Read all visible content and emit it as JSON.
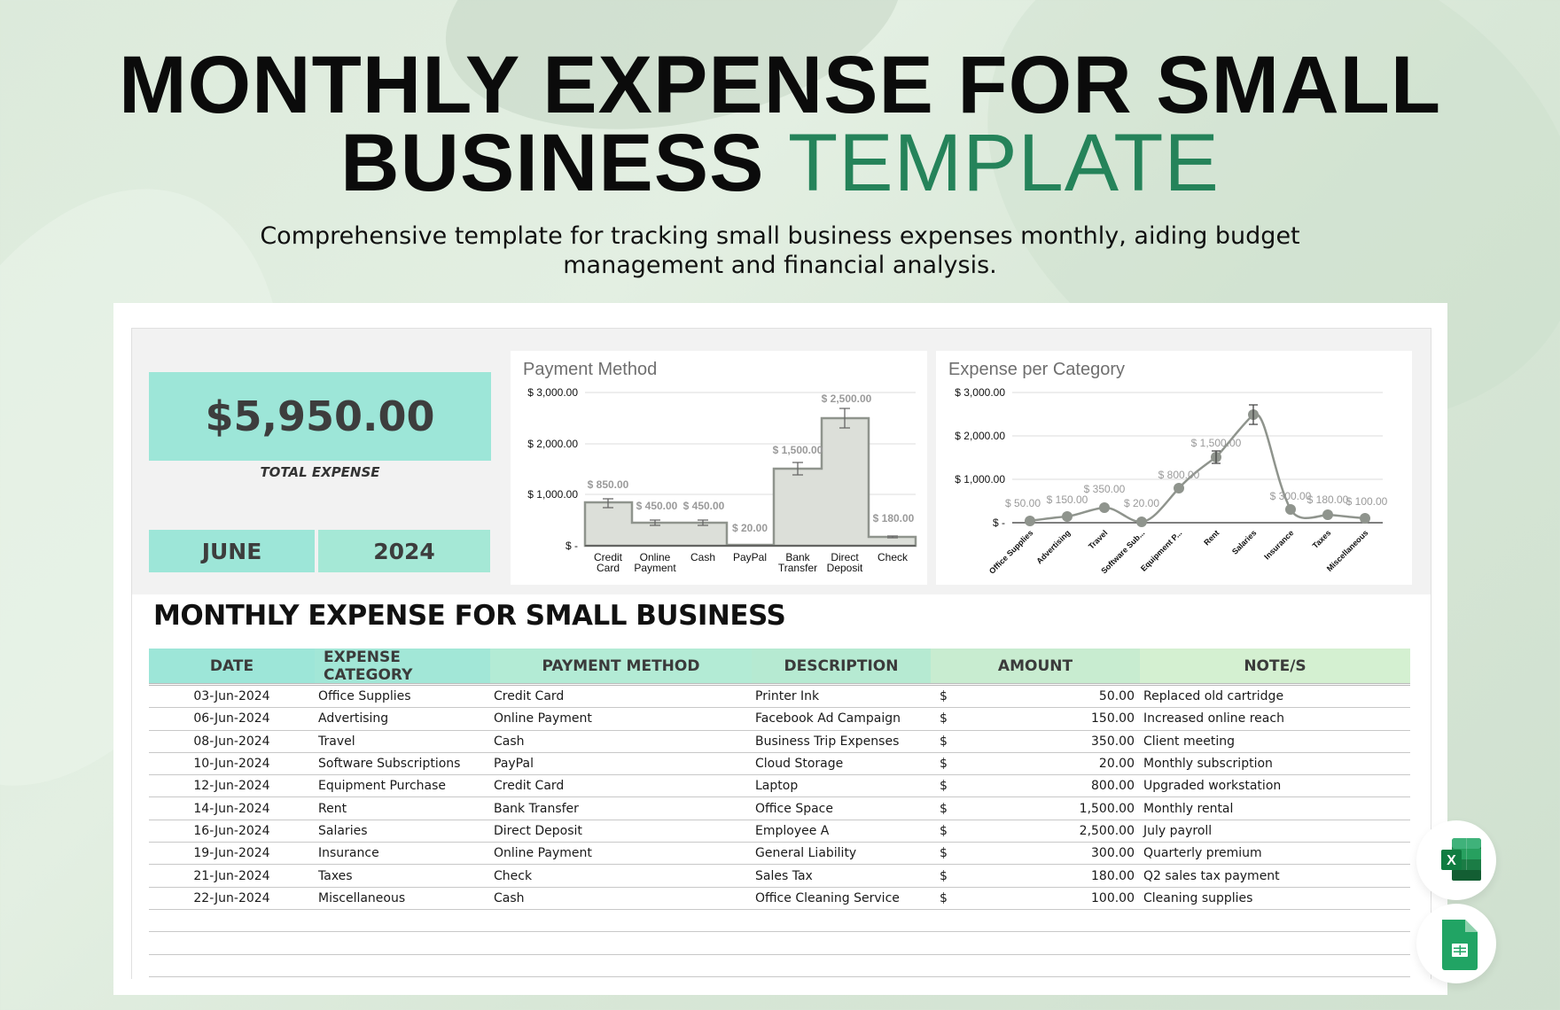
{
  "hero": {
    "title_line1": "MONTHLY EXPENSE FOR SMALL",
    "title_line2_main": "BUSINESS",
    "title_line2_accent": "TEMPLATE",
    "subtitle": "Comprehensive template for tracking small business expenses monthly, aiding budget management and financial analysis.",
    "accent_color": "#25835a"
  },
  "summary": {
    "total_value": "$5,950.00",
    "total_label": "TOTAL EXPENSE",
    "month": "JUNE",
    "year": "2024",
    "tile_color": "#9de6d8"
  },
  "chart_data": [
    {
      "type": "bar",
      "title": "Payment Method",
      "categories": [
        "Credit Card",
        "Online Payment",
        "Cash",
        "PayPal",
        "Bank Transfer",
        "Direct Deposit",
        "Check"
      ],
      "values": [
        850,
        450,
        450,
        20,
        1500,
        2500,
        180
      ],
      "data_labels": [
        "$ 850.00",
        "$ 450.00",
        "$ 450.00",
        "$ 20.00",
        "$ 1,500.00",
        "$ 2,500.00",
        "$ 180.00"
      ],
      "ytick_labels": [
        "$ -",
        "$ 1,000.00",
        "$ 2,000.00",
        "$ 3,000.00"
      ],
      "ylim": [
        0,
        3000
      ],
      "error_bars": true,
      "grid": true,
      "legend": "none",
      "fill_color": "#dcdfd9",
      "line_color": "#8f948d"
    },
    {
      "type": "line",
      "title": "Expense per Category",
      "categories": [
        "Office Supplies",
        "Advertising",
        "Travel",
        "Software Sub...",
        "Equipment P...",
        "Rent",
        "Salaries",
        "Insurance",
        "Taxes",
        "Miscellaneous"
      ],
      "values": [
        50,
        150,
        350,
        20,
        800,
        1500,
        2500,
        300,
        180,
        100
      ],
      "data_labels": [
        "$ 50.00",
        "$ 150.00",
        "$ 350.00",
        "$ 20.00",
        "$ 800.00",
        "$ 1,500.00",
        "$ 2,500.00",
        "$ 300.00",
        "$ 180.00",
        "$ 100.00"
      ],
      "ytick_labels": [
        "$ -",
        "$ 1,000.00",
        "$ 2,000.00",
        "$ 3,000.00"
      ],
      "ylim": [
        0,
        3000
      ],
      "smooth": true,
      "markers": true,
      "grid": true,
      "legend": "none",
      "line_color": "#8f948d"
    }
  ],
  "table": {
    "title": "MONTHLY EXPENSE FOR SMALL BUSINESS",
    "columns": [
      "DATE",
      "EXPENSE CATEGORY",
      "PAYMENT METHOD",
      "DESCRIPTION",
      "AMOUNT",
      "NOTE/S"
    ],
    "currency_symbol": "$",
    "rows": [
      {
        "date": "03-Jun-2024",
        "category": "Office Supplies",
        "payment": "Credit Card",
        "description": "Printer Ink",
        "amount": "50.00",
        "notes": "Replaced old cartridge"
      },
      {
        "date": "06-Jun-2024",
        "category": "Advertising",
        "payment": "Online Payment",
        "description": "Facebook Ad Campaign",
        "amount": "150.00",
        "notes": "Increased online reach"
      },
      {
        "date": "08-Jun-2024",
        "category": "Travel",
        "payment": "Cash",
        "description": "Business Trip Expenses",
        "amount": "350.00",
        "notes": "Client meeting"
      },
      {
        "date": "10-Jun-2024",
        "category": "Software Subscriptions",
        "payment": "PayPal",
        "description": "Cloud Storage",
        "amount": "20.00",
        "notes": "Monthly subscription"
      },
      {
        "date": "12-Jun-2024",
        "category": "Equipment Purchase",
        "payment": "Credit Card",
        "description": "Laptop",
        "amount": "800.00",
        "notes": "Upgraded workstation"
      },
      {
        "date": "14-Jun-2024",
        "category": "Rent",
        "payment": "Bank Transfer",
        "description": "Office Space",
        "amount": "1,500.00",
        "notes": "Monthly rental"
      },
      {
        "date": "16-Jun-2024",
        "category": "Salaries",
        "payment": "Direct Deposit",
        "description": "Employee A",
        "amount": "2,500.00",
        "notes": "July payroll"
      },
      {
        "date": "19-Jun-2024",
        "category": "Insurance",
        "payment": "Online Payment",
        "description": "General Liability",
        "amount": "300.00",
        "notes": "Quarterly premium"
      },
      {
        "date": "21-Jun-2024",
        "category": "Taxes",
        "payment": "Check",
        "description": "Sales Tax",
        "amount": "180.00",
        "notes": "Q2 sales tax payment"
      },
      {
        "date": "22-Jun-2024",
        "category": "Miscellaneous",
        "payment": "Cash",
        "description": "Office Cleaning Service",
        "amount": "100.00",
        "notes": "Cleaning supplies"
      }
    ],
    "empty_rows": 3
  },
  "app_badges": [
    {
      "name": "Microsoft Excel",
      "icon": "excel-icon"
    },
    {
      "name": "Google Sheets",
      "icon": "google-sheets-icon"
    }
  ]
}
